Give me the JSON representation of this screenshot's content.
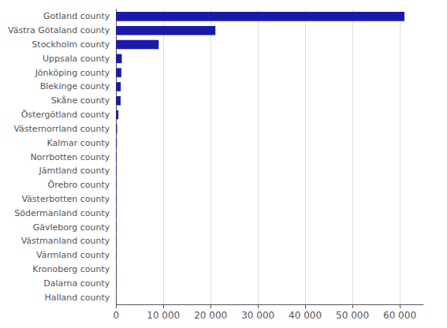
{
  "chart_data": {
    "type": "bar",
    "orientation": "horizontal",
    "categories": [
      "Gotland county",
      "Västra Götaland county",
      "Stockholm county",
      "Uppsala county",
      "Jönköping county",
      "Blekinge county",
      "Skåne county",
      "Östergötland county",
      "Västernorrland county",
      "Kalmar county",
      "Norrbotten county",
      "Jämtland county",
      "Örebro county",
      "Västerbotten county",
      "Södermanland county",
      "Gävleborg county",
      "Västmanland county",
      "Värmland county",
      "Kronoberg county",
      "Dalarna county",
      "Halland county"
    ],
    "values": [
      61000,
      21000,
      9000,
      1200,
      1100,
      980,
      950,
      480,
      200,
      150,
      120,
      110,
      100,
      90,
      80,
      70,
      60,
      50,
      40,
      30,
      20
    ],
    "color": "#1a1aaa",
    "xlim": [
      0,
      65000
    ],
    "xticks": [
      0,
      {
        "value": 10000,
        "label": "10 000"
      },
      {
        "value": 20000,
        "label": "20 000"
      },
      {
        "value": 30000,
        "label": "30 000"
      },
      {
        "value": 40000,
        "label": "40 000"
      },
      {
        "value": 50000,
        "label": "50 000"
      },
      {
        "value": 60000,
        "label": "60 000"
      }
    ],
    "grid": true
  }
}
